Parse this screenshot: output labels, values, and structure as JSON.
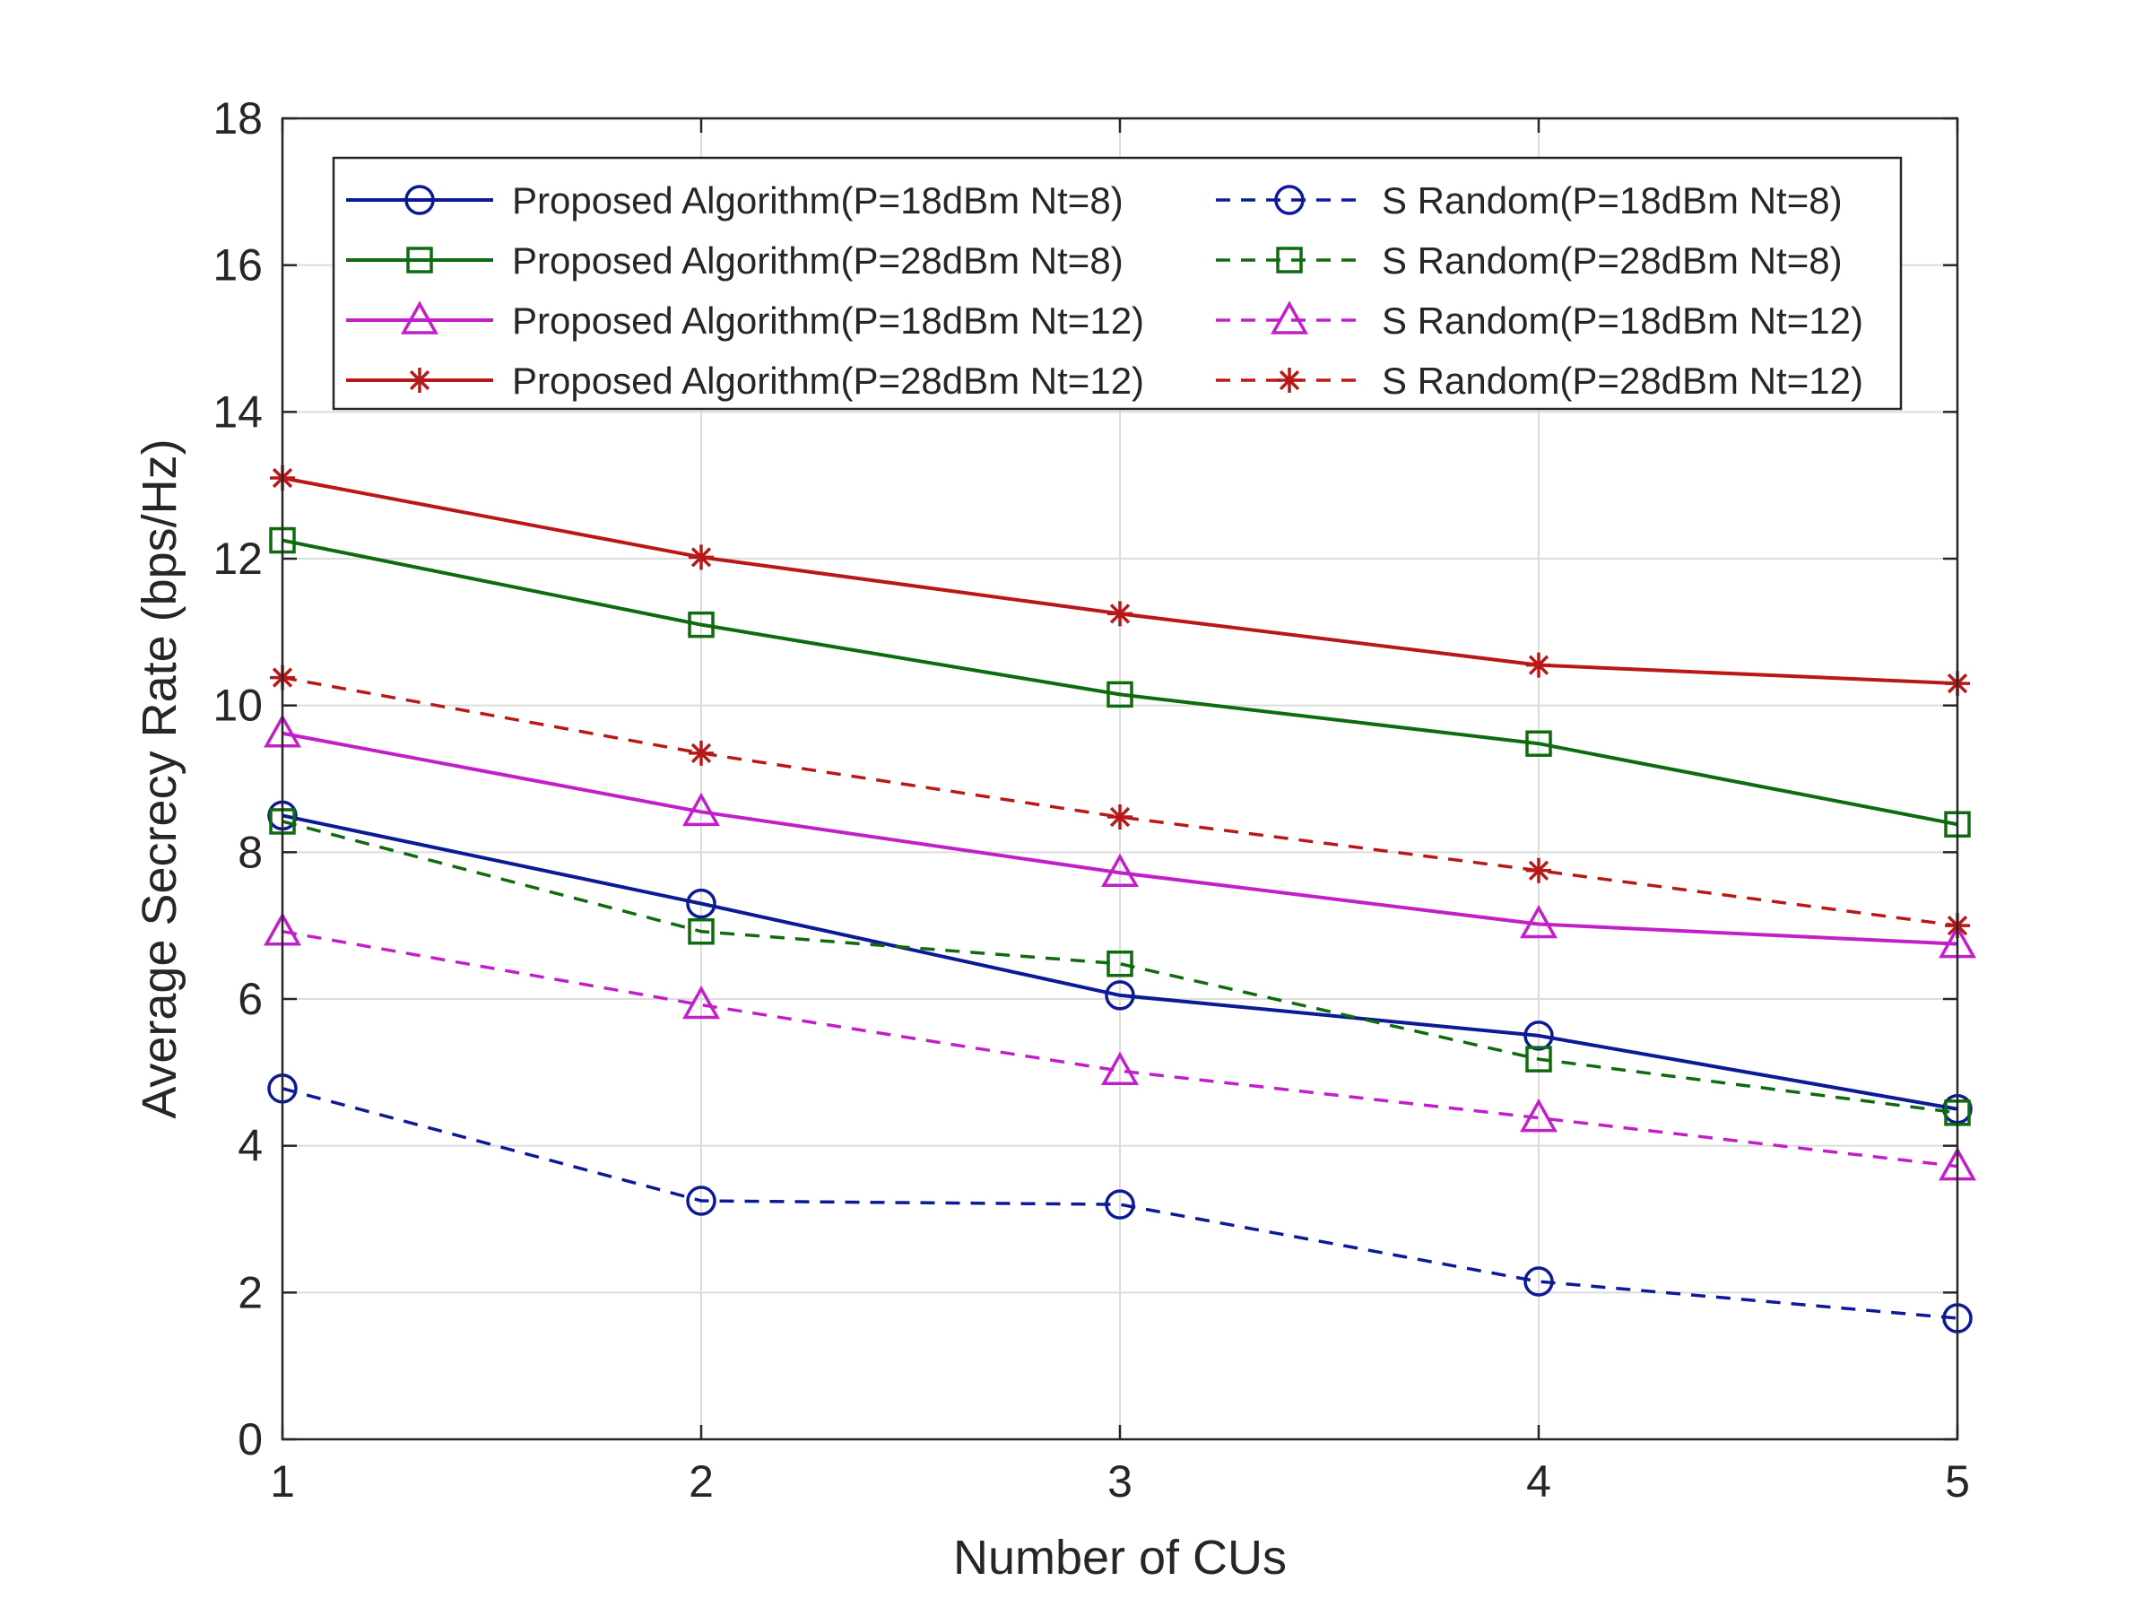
{
  "chart_data": {
    "type": "line",
    "title": "",
    "xlabel": "Number of CUs",
    "ylabel": "Average Secrecy Rate (bps/Hz)",
    "x": [
      1,
      2,
      3,
      4,
      5
    ],
    "xlim": [
      1,
      5
    ],
    "ylim": [
      0,
      18
    ],
    "xticks": [
      "1",
      "2",
      "3",
      "4",
      "5"
    ],
    "yticks": [
      "0",
      "2",
      "4",
      "6",
      "8",
      "10",
      "12",
      "14",
      "16",
      "18"
    ],
    "grid": true,
    "legend_position": "top",
    "series": [
      {
        "name": "Proposed Algorithm(P=18dBm Nt=8)",
        "color": "#0c1a96",
        "style": "solid",
        "marker": "circle",
        "values": [
          8.5,
          7.3,
          6.05,
          5.5,
          4.5
        ]
      },
      {
        "name": "Proposed Algorithm(P=28dBm Nt=8)",
        "color": "#0f6b0f",
        "style": "solid",
        "marker": "square",
        "values": [
          12.25,
          11.1,
          10.15,
          9.48,
          8.38
        ]
      },
      {
        "name": "Proposed Algorithm(P=18dBm Nt=12)",
        "color": "#c21fc9",
        "style": "solid",
        "marker": "triangle",
        "values": [
          9.62,
          8.55,
          7.72,
          7.02,
          6.75
        ]
      },
      {
        "name": "Proposed Algorithm(P=28dBm Nt=12)",
        "color": "#b81818",
        "style": "solid",
        "marker": "star",
        "values": [
          13.1,
          12.02,
          11.25,
          10.55,
          10.3
        ]
      },
      {
        "name": "S Random(P=18dBm Nt=8)",
        "color": "#0c1a96",
        "style": "dashed",
        "marker": "circle",
        "values": [
          4.78,
          3.25,
          3.2,
          2.15,
          1.65
        ]
      },
      {
        "name": "S Random(P=28dBm Nt=8)",
        "color": "#0f6b0f",
        "style": "dashed",
        "marker": "square",
        "values": [
          8.42,
          6.92,
          6.48,
          5.18,
          4.45
        ]
      },
      {
        "name": "S Random(P=18dBm Nt=12)",
        "color": "#c21fc9",
        "style": "dashed",
        "marker": "triangle",
        "values": [
          6.92,
          5.92,
          5.02,
          4.38,
          3.72
        ]
      },
      {
        "name": "S Random(P=28dBm Nt=12)",
        "color": "#b81818",
        "style": "dashed",
        "marker": "star",
        "values": [
          10.38,
          9.35,
          8.48,
          7.75,
          7.0
        ]
      }
    ]
  }
}
